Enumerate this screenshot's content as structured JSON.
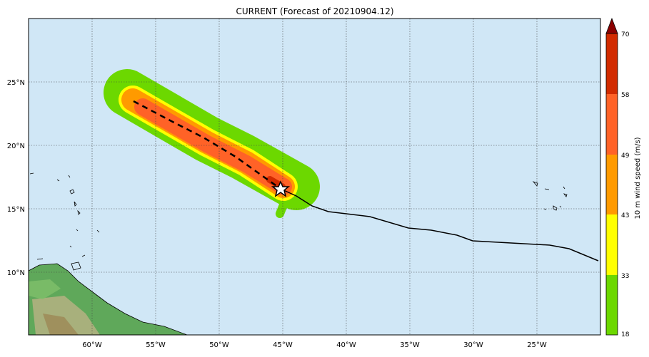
{
  "title": "CURRENT (Forecast of 20210904.12)",
  "lon_ticks": [
    "60°W",
    "55°W",
    "50°W",
    "45°W",
    "40°W",
    "35°W",
    "30°W",
    "25°W"
  ],
  "lat_ticks": [
    "25°N",
    "20°N",
    "15°N",
    "10°N"
  ],
  "colorbar": {
    "label": "10 m wind speed (m/s)",
    "ticks": [
      "18",
      "33",
      "43",
      "49",
      "58",
      "70"
    ],
    "colors": [
      "#6cd800",
      "#ffff00",
      "#ff9a00",
      "#ff6227",
      "#d22b00"
    ],
    "extend_color": "#8b0000"
  },
  "colors": {
    "ocean": "#d0e7f6",
    "land": "#5fa85a"
  }
}
